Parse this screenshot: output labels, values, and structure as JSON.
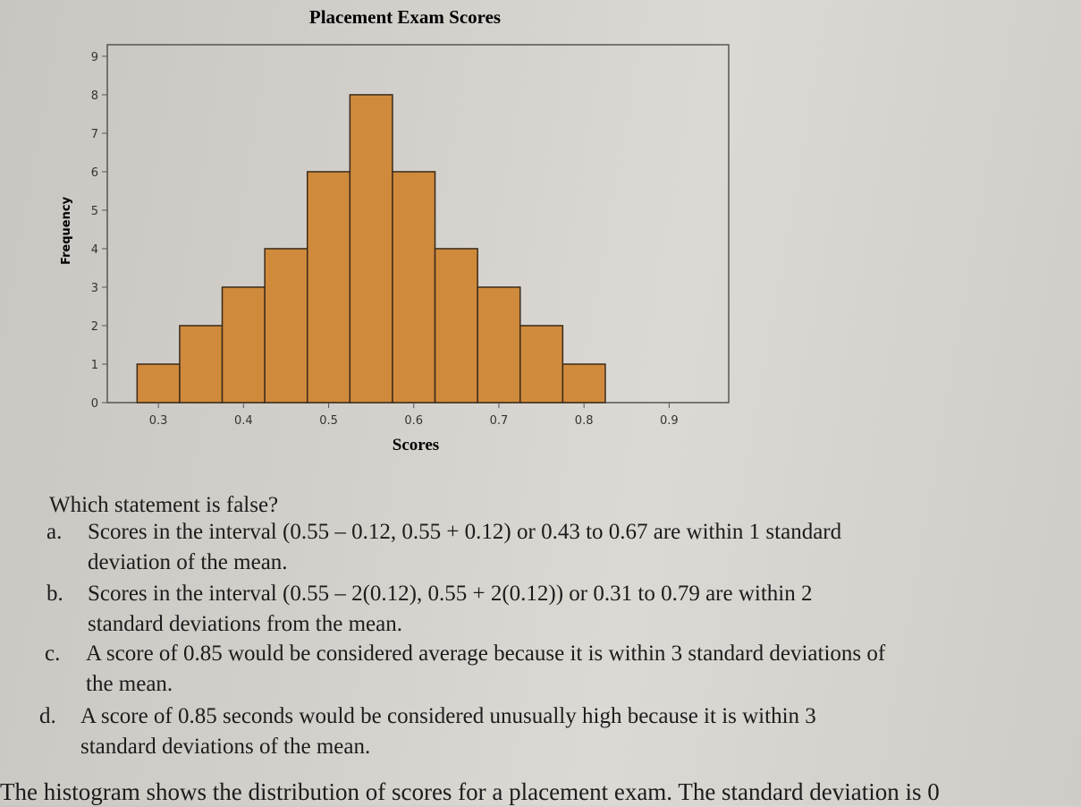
{
  "chart_data": {
    "type": "bar",
    "title": "Placement Exam Scores",
    "xlabel": "Scores",
    "ylabel": "Frequency",
    "bin_width": 0.05,
    "bins": [
      {
        "start": 0.275,
        "end": 0.325,
        "value": 1
      },
      {
        "start": 0.325,
        "end": 0.375,
        "value": 2
      },
      {
        "start": 0.375,
        "end": 0.425,
        "value": 3
      },
      {
        "start": 0.425,
        "end": 0.475,
        "value": 4
      },
      {
        "start": 0.475,
        "end": 0.525,
        "value": 6
      },
      {
        "start": 0.525,
        "end": 0.575,
        "value": 8
      },
      {
        "start": 0.575,
        "end": 0.625,
        "value": 6
      },
      {
        "start": 0.625,
        "end": 0.675,
        "value": 4
      },
      {
        "start": 0.675,
        "end": 0.725,
        "value": 3
      },
      {
        "start": 0.725,
        "end": 0.775,
        "value": 2
      },
      {
        "start": 0.775,
        "end": 0.825,
        "value": 1
      }
    ],
    "xlim": [
      0.24,
      0.97
    ],
    "ylim": [
      0,
      9.3
    ],
    "xticks": [
      "0.3",
      "0.4",
      "0.5",
      "0.6",
      "0.7",
      "0.8",
      "0.9"
    ],
    "yticks": [
      "0",
      "1",
      "2",
      "3",
      "4",
      "5",
      "6",
      "7",
      "8",
      "9"
    ],
    "bar_color": "#d08a3c",
    "bar_edge_color": "#3a2a1a",
    "grid": false
  },
  "question": "Which statement is false?",
  "options": [
    {
      "letter": "a.",
      "lines": [
        "Scores in the interval (0.55 – 0.12, 0.55 + 0.12) or 0.43 to 0.67 are within 1 standard",
        "deviation of the mean."
      ]
    },
    {
      "letter": "b.",
      "lines": [
        "Scores in the interval (0.55 –   2(0.12), 0.55 + 2(0.12)) or 0.31 to 0.79 are within 2",
        "standard deviations from the mean."
      ]
    },
    {
      "letter": "c.",
      "lines": [
        "A score of 0.85 would be considered average because it is within 3 standard deviations of",
        "the mean."
      ]
    },
    {
      "letter": "d.",
      "lines": [
        "A score of 0.85 seconds would be considered unusually high because it is within 3",
        "standard deviations of the mean."
      ]
    }
  ],
  "footer_text": "The histogram shows the distribution of scores for a placement exam. The standard deviation is 0"
}
